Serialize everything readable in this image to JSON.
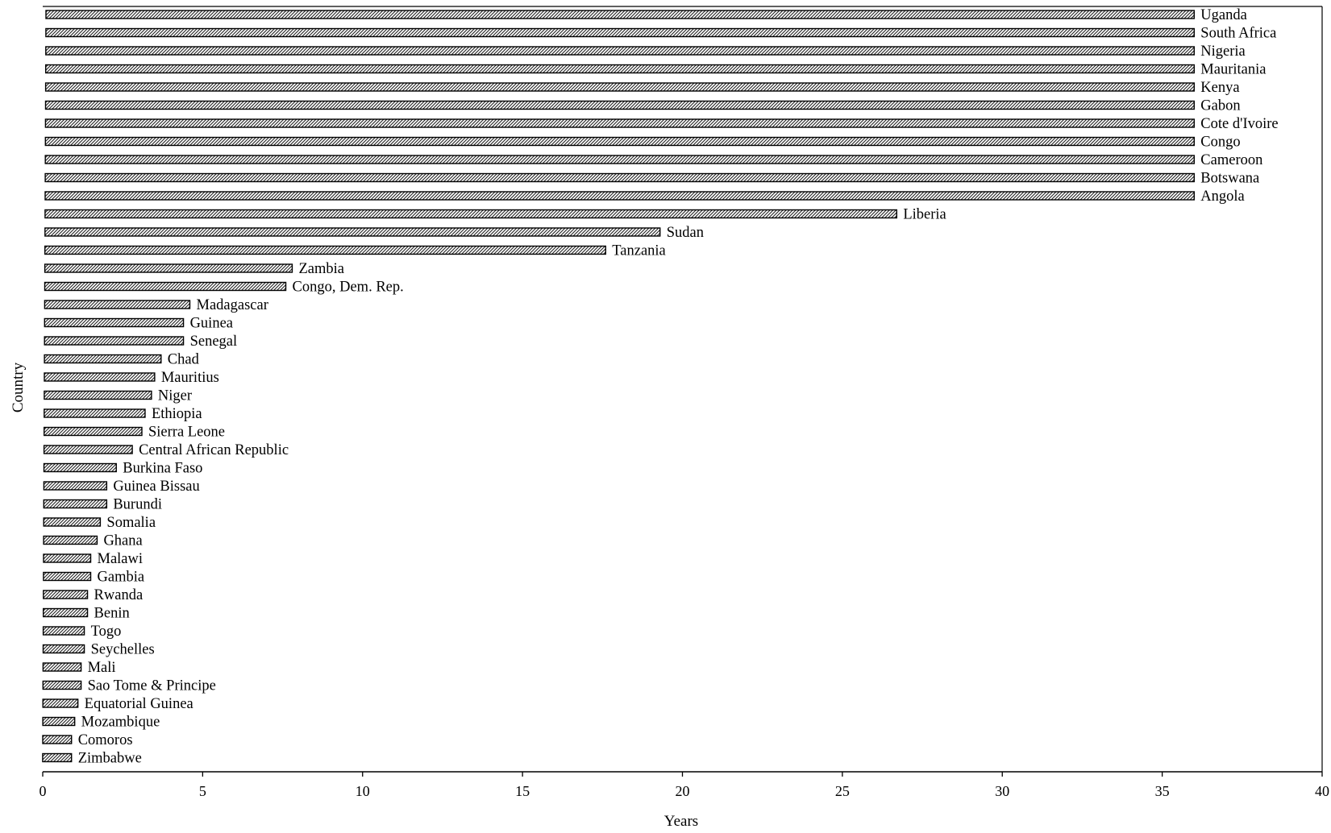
{
  "chart_data": {
    "type": "bar",
    "orientation": "horizontal",
    "xlabel": "Years",
    "ylabel": "Country",
    "xlim": [
      0,
      40
    ],
    "xticks": [
      0,
      5,
      10,
      15,
      20,
      25,
      30,
      35,
      40
    ],
    "grid": false,
    "legend": "none",
    "bar_fill": "hatched gray",
    "categories": [
      "Uganda",
      "South Africa",
      "Nigeria",
      "Mauritania",
      "Kenya",
      "Gabon",
      "Cote d'Ivoire",
      "Congo",
      "Cameroon",
      "Botswana",
      "Angola",
      "Liberia",
      "Sudan",
      "Tanzania",
      "Zambia",
      "Congo,  Dem. Rep.",
      "Madagascar",
      "Guinea",
      "Senegal",
      "Chad",
      "Mauritius",
      "Niger",
      "Ethiopia",
      "Sierra Leone",
      "Central African Republic",
      "Burkina Faso",
      "Guinea Bissau",
      "Burundi",
      "Somalia",
      "Ghana",
      "Malawi",
      "Gambia",
      "Rwanda",
      "Benin",
      "Togo",
      "Seychelles",
      "Mali",
      "Sao Tome & Principe",
      "Equatorial Guinea",
      "Mozambique",
      "Comoros",
      "Zimbabwe"
    ],
    "values": [
      36,
      36,
      36,
      36,
      36,
      36,
      36,
      36,
      36,
      36,
      36,
      26.7,
      19.3,
      17.6,
      7.8,
      7.6,
      4.6,
      4.4,
      4.4,
      3.7,
      3.5,
      3.4,
      3.2,
      3.1,
      2.8,
      2.3,
      2.0,
      2.0,
      1.8,
      1.7,
      1.5,
      1.5,
      1.4,
      1.4,
      1.3,
      1.3,
      1.2,
      1.2,
      1.1,
      1.0,
      0.9,
      0.9
    ]
  }
}
